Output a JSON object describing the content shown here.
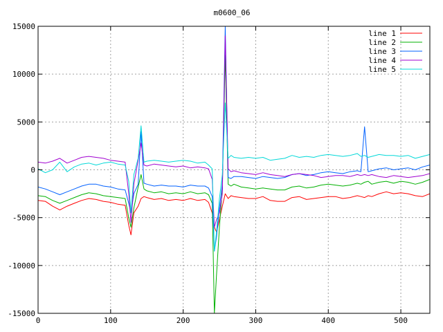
{
  "chart_data": {
    "type": "line",
    "title": "m0600_06",
    "xlabel": "",
    "ylabel": "",
    "xlim": [
      0,
      540
    ],
    "ylim": [
      -15000,
      15000
    ],
    "xticks": [
      0,
      100,
      200,
      300,
      400,
      500
    ],
    "yticks": [
      -15000,
      -10000,
      -5000,
      0,
      5000,
      10000,
      15000
    ],
    "grid": true,
    "legend_position": "top-right",
    "x": [
      0,
      10,
      20,
      30,
      40,
      50,
      60,
      70,
      80,
      90,
      100,
      110,
      120,
      125,
      128,
      132,
      138,
      142,
      146,
      150,
      160,
      170,
      180,
      190,
      200,
      210,
      220,
      230,
      235,
      240,
      243,
      246,
      250,
      254,
      258,
      262,
      266,
      270,
      280,
      290,
      300,
      310,
      320,
      330,
      340,
      350,
      360,
      370,
      380,
      390,
      400,
      410,
      420,
      430,
      440,
      445,
      450,
      455,
      460,
      470,
      480,
      490,
      500,
      510,
      520,
      530,
      540
    ],
    "series": [
      {
        "name": "line 1",
        "color": "#ff0000",
        "values": [
          -3200,
          -3300,
          -3800,
          -4200,
          -3800,
          -3500,
          -3200,
          -3000,
          -3100,
          -3300,
          -3400,
          -3600,
          -3700,
          -5800,
          -6800,
          -4500,
          -3800,
          -3000,
          -2800,
          -2900,
          -3100,
          -3000,
          -3200,
          -3100,
          -3200,
          -3000,
          -3200,
          -3100,
          -3400,
          -4500,
          -6000,
          -6500,
          -5200,
          -3800,
          -2500,
          -3000,
          -2700,
          -2800,
          -2900,
          -3000,
          -3000,
          -2800,
          -3200,
          -3300,
          -3300,
          -2900,
          -2800,
          -3100,
          -3000,
          -2900,
          -2800,
          -2800,
          -3000,
          -2900,
          -2700,
          -2800,
          -2900,
          -2700,
          -2800,
          -2500,
          -2300,
          -2500,
          -2400,
          -2500,
          -2700,
          -2800,
          -2500
        ]
      },
      {
        "name": "line 2",
        "color": "#00b000",
        "values": [
          -2700,
          -2800,
          -3200,
          -3500,
          -3200,
          -2900,
          -2600,
          -2400,
          -2500,
          -2700,
          -2800,
          -2900,
          -3000,
          -5000,
          -6000,
          -4000,
          -1800,
          -500,
          -2000,
          -2200,
          -2400,
          -2300,
          -2500,
          -2400,
          -2500,
          -2300,
          -2500,
          -2400,
          -2600,
          -3500,
          -15000,
          -11000,
          -6000,
          -2000,
          12000,
          -1500,
          -1700,
          -1500,
          -1800,
          -1900,
          -2000,
          -1900,
          -2000,
          -2100,
          -2100,
          -1800,
          -1700,
          -1900,
          -1800,
          -1600,
          -1500,
          -1600,
          -1700,
          -1600,
          -1400,
          -1500,
          -1300,
          -1200,
          -1500,
          -1300,
          -1200,
          -1400,
          -1200,
          -1300,
          -1500,
          -1300,
          -1000
        ]
      },
      {
        "name": "line 3",
        "color": "#0060ff",
        "values": [
          -1800,
          -2000,
          -2300,
          -2600,
          -2300,
          -2000,
          -1700,
          -1500,
          -1500,
          -1700,
          -1800,
          -2000,
          -2100,
          -3500,
          -4500,
          -2500,
          -1500,
          4000,
          -1400,
          -1500,
          -1700,
          -1600,
          -1700,
          -1700,
          -1800,
          -1600,
          -1700,
          -1700,
          -1900,
          -2800,
          -8500,
          -7000,
          -4000,
          -1500,
          15000,
          -800,
          -900,
          -700,
          -700,
          -800,
          -900,
          -700,
          -800,
          -900,
          -800,
          -500,
          -400,
          -600,
          -500,
          -300,
          -200,
          -300,
          -400,
          -200,
          -100,
          -200,
          4500,
          -200,
          -100,
          100,
          200,
          0,
          100,
          200,
          0,
          300,
          500
        ]
      },
      {
        "name": "line 4",
        "color": "#a000d0",
        "values": [
          800,
          700,
          900,
          1200,
          700,
          1000,
          1300,
          1400,
          1300,
          1200,
          1000,
          900,
          800,
          -2500,
          -5500,
          -1500,
          1000,
          2800,
          500,
          400,
          600,
          500,
          400,
          300,
          400,
          200,
          300,
          200,
          100,
          -1000,
          -6000,
          -5200,
          -4500,
          -2500,
          14000,
          100,
          -200,
          -100,
          -300,
          -400,
          -500,
          -300,
          -500,
          -600,
          -700,
          -500,
          -400,
          -500,
          -600,
          -800,
          -700,
          -600,
          -600,
          -700,
          -500,
          -600,
          -500,
          -600,
          -500,
          -700,
          -800,
          -600,
          -700,
          -800,
          -700,
          -600,
          -400
        ]
      },
      {
        "name": "line 5",
        "color": "#00d8d8",
        "values": [
          100,
          -300,
          0,
          800,
          -200,
          300,
          600,
          700,
          500,
          700,
          800,
          600,
          500,
          -1200,
          -4500,
          -500,
          1200,
          4600,
          800,
          900,
          1000,
          900,
          800,
          900,
          1000,
          900,
          700,
          800,
          500,
          100,
          -8500,
          -6500,
          -3000,
          -500,
          7000,
          1200,
          1500,
          1300,
          1200,
          1300,
          1200,
          1300,
          1000,
          1100,
          1200,
          1500,
          1300,
          1400,
          1300,
          1500,
          1600,
          1500,
          1400,
          1500,
          1700,
          1400,
          1500,
          1300,
          1400,
          1600,
          1500,
          1500,
          1400,
          1500,
          1200,
          1400,
          1600
        ]
      }
    ]
  }
}
